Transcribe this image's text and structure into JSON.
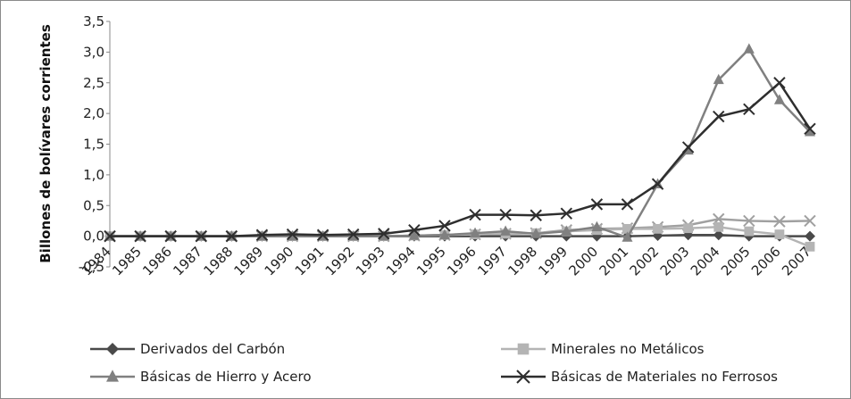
{
  "chart_data": {
    "type": "line",
    "title": "",
    "xlabel": "",
    "ylabel": "Billones de bolívares corrientes",
    "ylim": [
      -0.5,
      3.5
    ],
    "yticks": [
      "-0,5",
      "0,0",
      "0,5",
      "1,0",
      "1,5",
      "2,0",
      "2,5",
      "3,0",
      "3,5"
    ],
    "ytick_values": [
      -0.5,
      0,
      0.5,
      1.0,
      1.5,
      2.0,
      2.5,
      3.0,
      3.5
    ],
    "categories": [
      "1984",
      "1985",
      "1986",
      "1987",
      "1988",
      "1989",
      "1990",
      "1991",
      "1992",
      "1993",
      "1994",
      "1995",
      "1996",
      "1997",
      "1998",
      "1999",
      "2000",
      "2001",
      "2002",
      "2003",
      "2004",
      "2005",
      "2006",
      "2007"
    ],
    "grid": false,
    "legend_position": "bottom",
    "series": [
      {
        "name": "Derivados del Carbón",
        "color": "#4a4a4a",
        "marker": "diamond",
        "values": [
          0,
          0,
          0,
          0,
          0,
          0,
          0,
          0,
          0,
          0,
          0,
          0,
          0,
          0,
          0,
          0,
          0,
          0,
          0.01,
          0.02,
          0.02,
          0,
          0,
          0
        ]
      },
      {
        "name": "Minerales no Metálicos",
        "color": "#b4b4b4",
        "marker": "square",
        "values": [
          0,
          0,
          0,
          0,
          0,
          0,
          0,
          0,
          0,
          0,
          0.01,
          0.02,
          0.03,
          0.04,
          0.05,
          0.08,
          0.1,
          0.12,
          0.12,
          0.13,
          0.15,
          0.08,
          0.03,
          -0.17
        ]
      },
      {
        "name": "Básicas de Hierro y Acero",
        "color": "#808080",
        "marker": "triangle",
        "values": [
          0,
          0,
          0,
          0,
          0,
          0,
          0,
          0,
          0,
          0,
          0.01,
          0.02,
          0.05,
          0.08,
          0.04,
          0.08,
          0.15,
          -0.02,
          0.85,
          1.4,
          2.55,
          3.05,
          2.22,
          1.7
        ]
      },
      {
        "name": "Básicas de Materiales no Ferrosos",
        "color": "#2e2e2e",
        "marker": "x",
        "values": [
          0,
          0,
          0,
          0,
          0,
          0.02,
          0.03,
          0.02,
          0.03,
          0.04,
          0.1,
          0.17,
          0.35,
          0.35,
          0.34,
          0.37,
          0.52,
          0.52,
          0.85,
          1.45,
          1.95,
          2.07,
          2.5,
          1.75
        ]
      }
    ]
  },
  "extra_series": {
    "name": "",
    "color": "#a0a0a0",
    "marker": "x",
    "values": [
      0,
      0,
      0,
      0,
      0,
      0,
      0,
      0,
      0,
      0,
      0.01,
      0.02,
      0.03,
      0.04,
      0.05,
      0.1,
      0.12,
      0.13,
      0.15,
      0.18,
      0.28,
      0.25,
      0.24,
      0.25
    ]
  }
}
